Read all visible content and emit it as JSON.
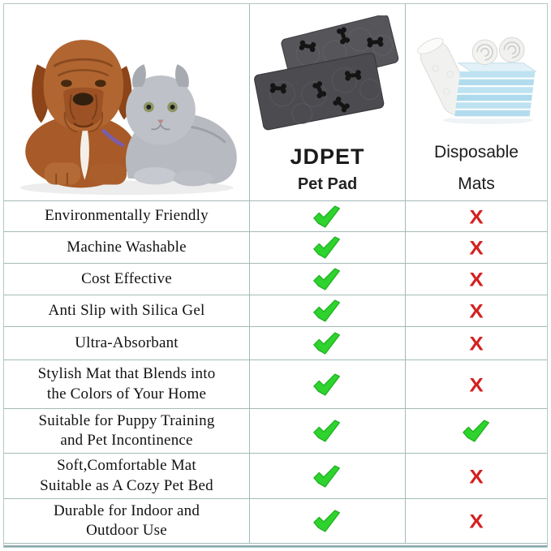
{
  "frame": {
    "border_color": "#b2c9c5",
    "grid_line_color": "#a4bab8",
    "bottom_accent_color": "#8aa8ae"
  },
  "header": {
    "photo_icon": "dog-and-cat-photo",
    "products": [
      {
        "title": "JDPET",
        "subtitle": "Pet Pad",
        "image_icon": "jdpet-pad-image"
      },
      {
        "title": "Disposable",
        "subtitle": "Mats",
        "image_icon": "disposable-mats-image"
      }
    ]
  },
  "marks": {
    "check_color": "#2ed32e",
    "check_edge_color": "#1fae1f",
    "cross_color": "#d42020",
    "cross_glyph": "X"
  },
  "rows": [
    {
      "line1": "Environmentally Friendly",
      "jdpet": "check",
      "disposable": "cross"
    },
    {
      "line1": "Machine Washable",
      "jdpet": "check",
      "disposable": "cross"
    },
    {
      "line1": "Cost Effective",
      "jdpet": "check",
      "disposable": "cross"
    },
    {
      "line1": "Anti Slip with Silica Gel",
      "jdpet": "check",
      "disposable": "cross"
    },
    {
      "line1": "Ultra-Absorbant",
      "jdpet": "check",
      "disposable": "cross"
    },
    {
      "line1": "Stylish Mat that Blends into",
      "line2": "the Colors of Your Home",
      "jdpet": "check",
      "disposable": "cross"
    },
    {
      "line1": "Suitable for Puppy Training",
      "line2": "and Pet Incontinence",
      "jdpet": "check",
      "disposable": "check"
    },
    {
      "line1": "Soft,Comfortable Mat",
      "line2": "Suitable as A Cozy Pet Bed",
      "jdpet": "check",
      "disposable": "cross"
    },
    {
      "line1": "Durable for Indoor and",
      "line2": "Outdoor Use",
      "jdpet": "check",
      "disposable": "cross"
    }
  ],
  "chart_data": {
    "type": "table",
    "title": "",
    "categories": [
      "Environmentally Friendly",
      "Machine Washable",
      "Cost Effective",
      "Anti Slip with Silica Gel",
      "Ultra-Absorbant",
      "Stylish Mat that Blends into the Colors of Your Home",
      "Suitable for Puppy Training and Pet Incontinence",
      "Soft,Comfortable Mat Suitable as A Cozy Pet Bed",
      "Durable for Indoor and Outdoor Use"
    ],
    "series": [
      {
        "name": "JDPET Pet Pad",
        "values": [
          true,
          true,
          true,
          true,
          true,
          true,
          true,
          true,
          true
        ]
      },
      {
        "name": "Disposable Mats",
        "values": [
          false,
          false,
          false,
          false,
          false,
          false,
          true,
          false,
          false
        ]
      }
    ],
    "legend_position": "column headers",
    "grid": true
  }
}
